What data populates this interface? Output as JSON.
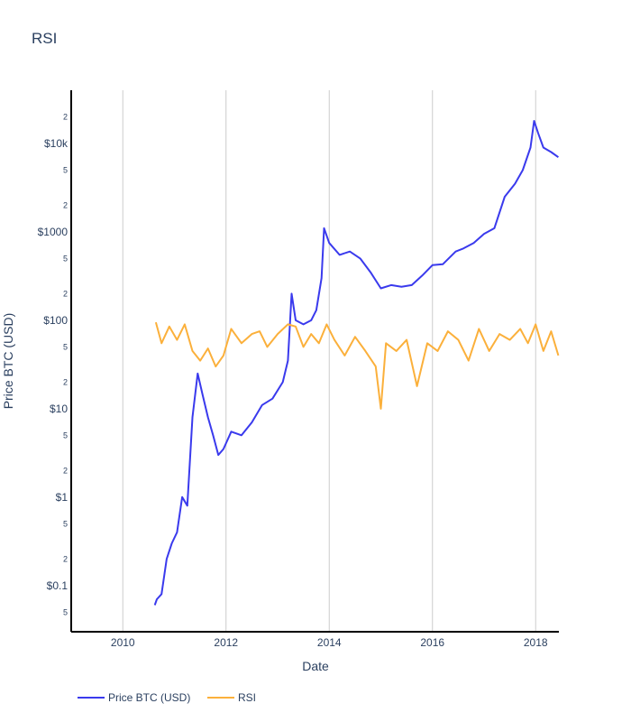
{
  "chart_data": {
    "type": "line",
    "title": "RSI",
    "xlabel": "Date",
    "ylabel": "Price BTC (USD)",
    "x_ticks": [
      "2010",
      "2012",
      "2014",
      "2016",
      "2018"
    ],
    "x_range": [
      2009.0,
      2018.45
    ],
    "y_scale": "log",
    "y_range": [
      0.03,
      40000
    ],
    "y_ticks": [
      {
        "value": 0.1,
        "label": "$0.1"
      },
      {
        "value": 1,
        "label": "$1"
      },
      {
        "value": 10,
        "label": "$10"
      },
      {
        "value": 100,
        "label": "$100"
      },
      {
        "value": 1000,
        "label": "$1000"
      },
      {
        "value": 10000,
        "label": "$10k"
      }
    ],
    "y_minor_ticks": [
      {
        "value": 0.05,
        "label": "5"
      },
      {
        "value": 0.2,
        "label": "2"
      },
      {
        "value": 0.5,
        "label": "5"
      },
      {
        "value": 2,
        "label": "2"
      },
      {
        "value": 5,
        "label": "5"
      },
      {
        "value": 20,
        "label": "2"
      },
      {
        "value": 50,
        "label": "5"
      },
      {
        "value": 200,
        "label": "2"
      },
      {
        "value": 500,
        "label": "5"
      },
      {
        "value": 2000,
        "label": "2"
      },
      {
        "value": 5000,
        "label": "5"
      },
      {
        "value": 20000,
        "label": "2"
      }
    ],
    "grid": {
      "vertical": true,
      "horizontal": false
    },
    "legend": {
      "position": "bottom-left",
      "orientation": "horizontal"
    },
    "series": [
      {
        "name": "Price BTC (USD)",
        "color": "#3a3aed",
        "x": [
          2010.62,
          2010.66,
          2010.75,
          2010.85,
          2010.95,
          2011.05,
          2011.15,
          2011.25,
          2011.35,
          2011.45,
          2011.55,
          2011.65,
          2011.75,
          2011.85,
          2011.95,
          2012.1,
          2012.3,
          2012.5,
          2012.7,
          2012.9,
          2013.1,
          2013.2,
          2013.27,
          2013.35,
          2013.5,
          2013.65,
          2013.75,
          2013.85,
          2013.9,
          2014.0,
          2014.2,
          2014.4,
          2014.6,
          2014.8,
          2015.0,
          2015.2,
          2015.4,
          2015.6,
          2015.8,
          2016.0,
          2016.2,
          2016.45,
          2016.6,
          2016.8,
          2017.0,
          2017.2,
          2017.4,
          2017.6,
          2017.75,
          2017.9,
          2017.97,
          2018.05,
          2018.15,
          2018.3,
          2018.44
        ],
        "y": [
          0.06,
          0.07,
          0.08,
          0.2,
          0.3,
          0.4,
          1.0,
          0.8,
          8.0,
          25,
          14,
          8.0,
          5.0,
          3.0,
          3.5,
          5.5,
          5.0,
          7.0,
          11,
          13,
          20,
          35,
          200,
          100,
          90,
          100,
          130,
          300,
          1100,
          750,
          550,
          600,
          500,
          350,
          230,
          250,
          240,
          250,
          320,
          420,
          430,
          600,
          650,
          750,
          950,
          1100,
          2500,
          3500,
          5000,
          9000,
          18000,
          13000,
          9000,
          8000,
          7000
        ],
        "values": [
          0.06,
          0.07,
          0.08,
          0.2,
          0.3,
          0.4,
          1.0,
          0.8,
          8.0,
          25,
          14,
          8.0,
          5.0,
          3.0,
          3.5,
          5.5,
          5.0,
          7.0,
          11,
          13,
          20,
          35,
          200,
          100,
          90,
          100,
          130,
          300,
          1100,
          750,
          550,
          600,
          500,
          350,
          230,
          250,
          240,
          250,
          320,
          420,
          430,
          600,
          650,
          750,
          950,
          1100,
          2500,
          3500,
          5000,
          9000,
          18000,
          13000,
          9000,
          8000,
          7000
        ]
      },
      {
        "name": "RSI",
        "color": "#fbb03b",
        "x": [
          2010.64,
          2010.75,
          2010.9,
          2011.05,
          2011.2,
          2011.35,
          2011.5,
          2011.65,
          2011.8,
          2011.95,
          2012.1,
          2012.3,
          2012.5,
          2012.65,
          2012.8,
          2013.0,
          2013.2,
          2013.35,
          2013.5,
          2013.65,
          2013.8,
          2013.95,
          2014.1,
          2014.3,
          2014.5,
          2014.7,
          2014.9,
          2015.0,
          2015.1,
          2015.3,
          2015.5,
          2015.7,
          2015.9,
          2016.1,
          2016.3,
          2016.5,
          2016.7,
          2016.9,
          2017.1,
          2017.3,
          2017.5,
          2017.7,
          2017.85,
          2018.0,
          2018.15,
          2018.3,
          2018.44
        ],
        "y": [
          95,
          55,
          85,
          60,
          90,
          45,
          35,
          48,
          30,
          40,
          80,
          55,
          70,
          75,
          50,
          70,
          90,
          85,
          50,
          70,
          55,
          90,
          60,
          40,
          65,
          45,
          30,
          10,
          55,
          45,
          60,
          18,
          55,
          45,
          75,
          60,
          35,
          80,
          45,
          70,
          60,
          80,
          55,
          90,
          45,
          75,
          40
        ],
        "values": [
          95,
          55,
          85,
          60,
          90,
          45,
          35,
          48,
          30,
          40,
          80,
          55,
          70,
          75,
          50,
          70,
          90,
          85,
          50,
          70,
          55,
          90,
          60,
          40,
          65,
          45,
          30,
          10,
          55,
          45,
          60,
          18,
          55,
          45,
          75,
          60,
          35,
          80,
          45,
          70,
          60,
          80,
          55,
          90,
          45,
          75,
          40
        ]
      }
    ]
  }
}
